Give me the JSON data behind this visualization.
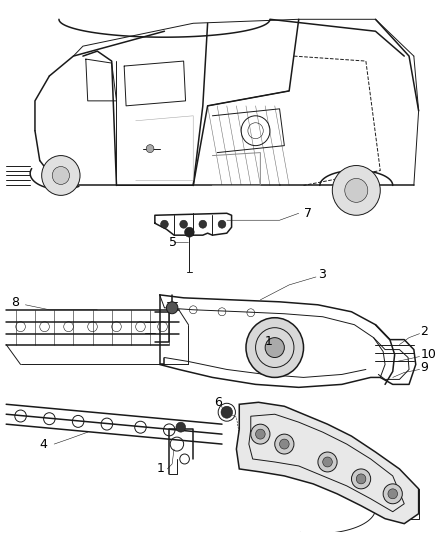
{
  "background_color": "#ffffff",
  "line_color": "#1a1a1a",
  "label_color": "#000000",
  "figsize": [
    4.38,
    5.33
  ],
  "dpi": 100,
  "gray_light": "#cccccc",
  "gray_mid": "#888888",
  "gray_dark": "#444444"
}
